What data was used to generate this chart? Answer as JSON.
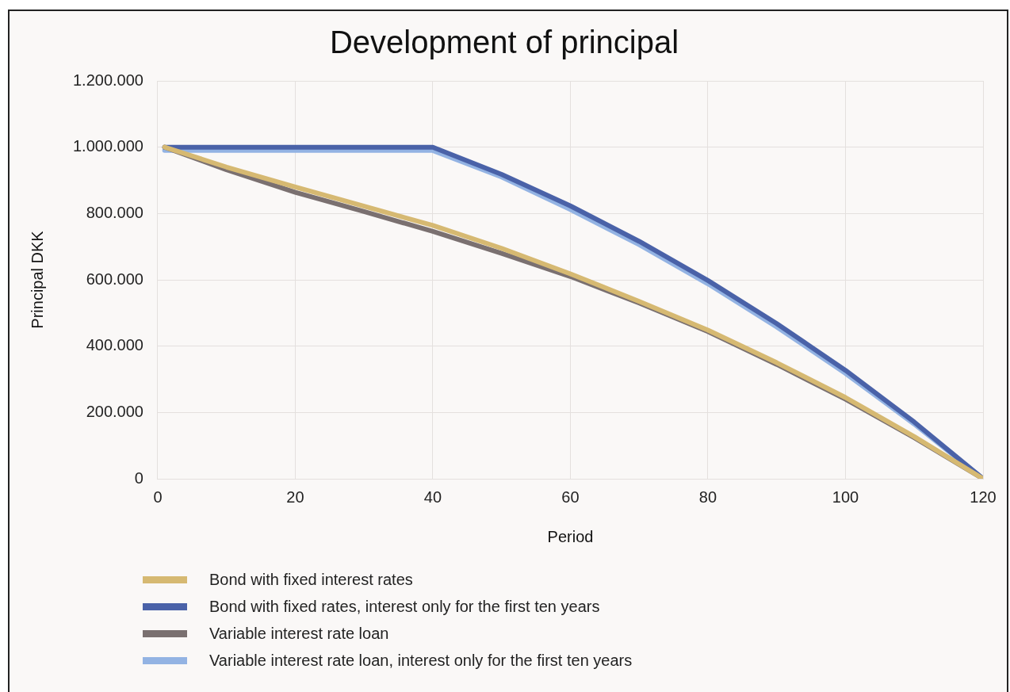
{
  "chart_data": {
    "type": "line",
    "title": "Development of principal",
    "xlabel": "Period",
    "ylabel": "Principal DKK",
    "xlim": [
      0,
      120
    ],
    "xticks": [
      0,
      20,
      40,
      60,
      80,
      100,
      120
    ],
    "ylim": [
      0,
      1200000
    ],
    "yticks": [
      {
        "value": 0,
        "label": "0"
      },
      {
        "value": 200000,
        "label": "200.000"
      },
      {
        "value": 400000,
        "label": "400.000"
      },
      {
        "value": 600000,
        "label": "600.000"
      },
      {
        "value": 800000,
        "label": "800.000"
      },
      {
        "value": 1000000,
        "label": "1.000.000"
      },
      {
        "value": 1200000,
        "label": "1.200.000"
      }
    ],
    "grid": true,
    "legend": "bottom left",
    "marker": "none",
    "line_style": "solid",
    "series": [
      {
        "name": "Bond with fixed interest rates",
        "color": "#d6b972",
        "x": [
          1,
          10,
          20,
          30,
          40,
          50,
          60,
          70,
          80,
          90,
          100,
          110,
          120
        ],
        "values": [
          1000000,
          940000,
          880000,
          822000,
          764000,
          695000,
          618000,
          535000,
          448000,
          350000,
          245000,
          127000,
          0
        ]
      },
      {
        "name": "Bond with fixed rates, interest only for the first ten years",
        "color": "#4a62a8",
        "x": [
          1,
          40,
          50,
          60,
          70,
          80,
          90,
          100,
          110,
          120
        ],
        "values": [
          1000000,
          1000000,
          918000,
          823000,
          716000,
          598000,
          468000,
          327000,
          171000,
          0
        ]
      },
      {
        "name": "Variable interest rate loan",
        "color": "#7a7070",
        "x": [
          1,
          10,
          20,
          30,
          40,
          50,
          60,
          70,
          80,
          90,
          100,
          110,
          120
        ],
        "values": [
          1000000,
          932000,
          864000,
          806000,
          746000,
          680000,
          610000,
          530000,
          444000,
          345000,
          240000,
          124000,
          0
        ]
      },
      {
        "name": "Variable interest rate loan, interest only for the first ten years",
        "color": "#93b3e3",
        "x": [
          1,
          40,
          50,
          60,
          70,
          80,
          90,
          100,
          110,
          120
        ],
        "values": [
          990000,
          990000,
          910000,
          812000,
          706000,
          588000,
          458000,
          318000,
          165000,
          0
        ]
      }
    ]
  }
}
